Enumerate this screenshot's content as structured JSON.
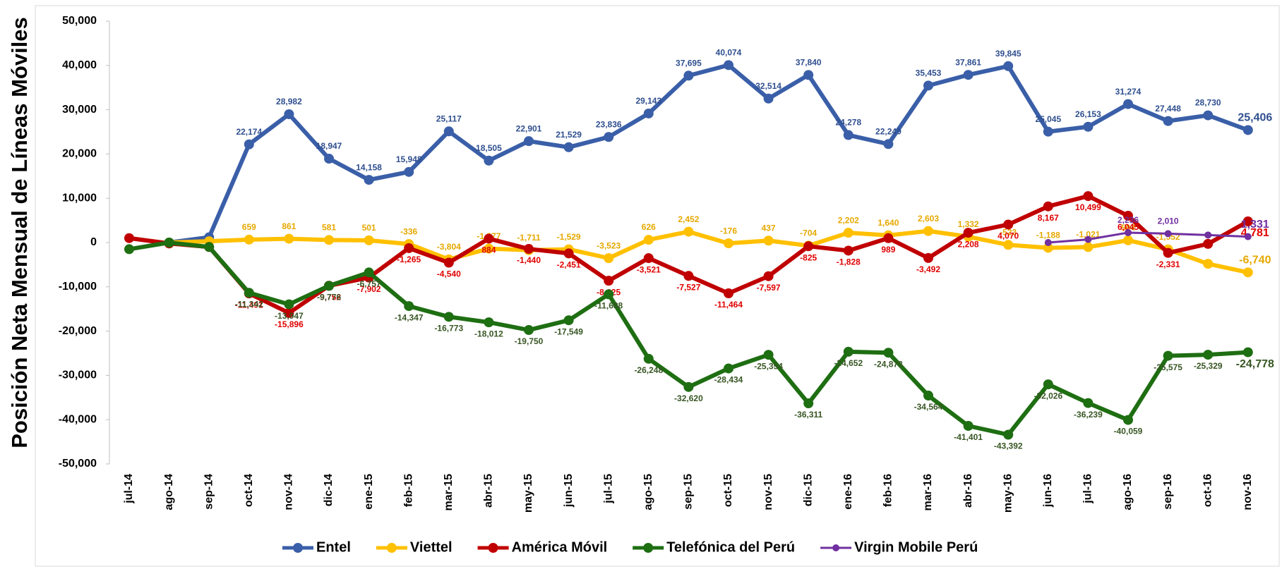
{
  "chart_data": {
    "type": "line",
    "y_axis_label": "Posición Neta Mensual de Líneas Móviles",
    "categories": [
      "jul-14",
      "ago-14",
      "sep-14",
      "oct-14",
      "nov-14",
      "dic-14",
      "ene-15",
      "feb-15",
      "mar-15",
      "abr-15",
      "may-15",
      "jun-15",
      "jul-15",
      "ago-15",
      "sep-15",
      "oct-15",
      "nov-15",
      "dic-15",
      "ene-16",
      "feb-16",
      "mar-16",
      "abr-16",
      "may-16",
      "jun-16",
      "jul-16",
      "ago-16",
      "sep-16",
      "oct-16",
      "nov-16"
    ],
    "ylim": [
      -50000,
      50000
    ],
    "yticks": [
      {
        "value": -50000,
        "label": "-50,000"
      },
      {
        "value": -40000,
        "label": "-40,000"
      },
      {
        "value": -30000,
        "label": "-30,000"
      },
      {
        "value": -20000,
        "label": "-20,000"
      },
      {
        "value": -10000,
        "label": "-10,000"
      },
      0,
      {
        "value": 10000,
        "label": "10,000"
      },
      {
        "value": 20000,
        "label": "20,000"
      },
      {
        "value": 30000,
        "label": "30,000"
      },
      {
        "value": 40000,
        "label": "40,000"
      },
      {
        "value": 50000,
        "label": "50,000"
      }
    ],
    "grid": false,
    "legend": "bottom",
    "series": [
      {
        "name": "Entel",
        "color": "#3a5fa8",
        "label_color": "#2f4f8f",
        "values": [
          null,
          0,
          1200,
          22174,
          28982,
          18947,
          14158,
          15948,
          25117,
          18505,
          22901,
          21529,
          23836,
          29143,
          37695,
          40074,
          32514,
          37840,
          24278,
          22249,
          35453,
          37861,
          39845,
          25045,
          26153,
          31274,
          27448,
          28730,
          25406
        ],
        "value_labels": [
          null,
          null,
          null,
          "22,174",
          "28,982",
          "18,947",
          "14,158",
          "15,948",
          "25,117",
          "18,505",
          "22,901",
          "21,529",
          "23,836",
          "29,143",
          "37,695",
          "40,074",
          "32,514",
          "37,840",
          "24,278",
          "22,249",
          "35,453",
          "37,861",
          "39,845",
          "25,045",
          "26,153",
          "31,274",
          "27,448",
          "28,730",
          "25,406"
        ]
      },
      {
        "name": "Viettel",
        "color": "#ffc000",
        "label_color": "#e6a800",
        "values": [
          null,
          0,
          300,
          659,
          861,
          581,
          501,
          -336,
          -3804,
          -1377,
          -1711,
          -1529,
          -3523,
          626,
          2452,
          -176,
          437,
          -704,
          2202,
          1640,
          2603,
          1332,
          -523,
          -1188,
          -1021,
          504,
          -1552,
          -4800,
          -6740
        ],
        "value_labels": [
          null,
          null,
          null,
          "659",
          "861",
          "581",
          "501",
          "-336",
          "-3,804",
          "-1,377",
          "-1,711",
          "-1,529",
          "-3,523",
          "626",
          "2,452",
          "-176",
          "437",
          "-704",
          "2,202",
          "1,640",
          "2,603",
          "1,332",
          "-523",
          "-1,188",
          "-1,021",
          "504",
          "-1,552",
          null,
          "-6,740"
        ]
      },
      {
        "name": "América Móvil",
        "color": "#c00000",
        "label_color": "#e00000",
        "values": [
          1000,
          -200,
          -1000,
          -11491,
          -15896,
          -9752,
          -7902,
          -1265,
          -4540,
          884,
          -1440,
          -2451,
          -8625,
          -3521,
          -7527,
          -11464,
          -7597,
          -825,
          -1828,
          989,
          -3492,
          2208,
          4070,
          8167,
          10499,
          6045,
          -2331,
          -300,
          4781
        ],
        "value_labels": [
          null,
          null,
          null,
          "-11,491",
          "-15,896",
          "-9,752",
          "-7,902",
          "-1,265",
          "-4,540",
          "884",
          "-1,440",
          "-2,451",
          "-8,625",
          "-3,521",
          "-7,527",
          "-11,464",
          "-7,597",
          "-825",
          "-1,828",
          "989",
          "-3,492",
          "2,208",
          "4,070",
          "8,167",
          "10,499",
          "6,045",
          "-2,331",
          null,
          "4,781"
        ]
      },
      {
        "name": "Telefónica del Perú",
        "color": "#1e6e12",
        "label_color": "#375623",
        "values": [
          -1500,
          0,
          -1000,
          -11342,
          -13947,
          -9776,
          -6757,
          -14347,
          -16773,
          -18012,
          -19750,
          -17549,
          -11688,
          -26248,
          -32620,
          -28434,
          -25354,
          -36311,
          -24652,
          -24878,
          -34564,
          -41401,
          -43392,
          -32026,
          -36239,
          -40059,
          -25575,
          -25329,
          -24778
        ],
        "value_labels": [
          null,
          null,
          null,
          "-11,342",
          "-13,947",
          "-9,776",
          "-6,757",
          "-14,347",
          "-16,773",
          "-18,012",
          "-19,750",
          "-17,549",
          "-11,688",
          "-26,248",
          "-32,620",
          "-28,434",
          "-25,354",
          "-36,311",
          "-24,652",
          "-24,878",
          "-34,564",
          "-41,401",
          "-43,392",
          "-32,026",
          "-36,239",
          "-40,059",
          "-25,575",
          "-25,329",
          "-24,778"
        ]
      },
      {
        "name": "Virgin Mobile Perú",
        "color": "#7030a0",
        "label_color": "#7030a0",
        "values": [
          null,
          null,
          null,
          null,
          null,
          null,
          null,
          null,
          null,
          null,
          null,
          null,
          null,
          null,
          null,
          null,
          null,
          null,
          null,
          null,
          null,
          null,
          null,
          0,
          700,
          2236,
          2010,
          1700,
          1331
        ],
        "value_labels": [
          null,
          null,
          null,
          null,
          null,
          null,
          null,
          null,
          null,
          null,
          null,
          null,
          null,
          null,
          null,
          null,
          null,
          null,
          null,
          null,
          null,
          null,
          null,
          null,
          null,
          "2,236",
          "2,010",
          null,
          "1,331"
        ]
      }
    ]
  }
}
